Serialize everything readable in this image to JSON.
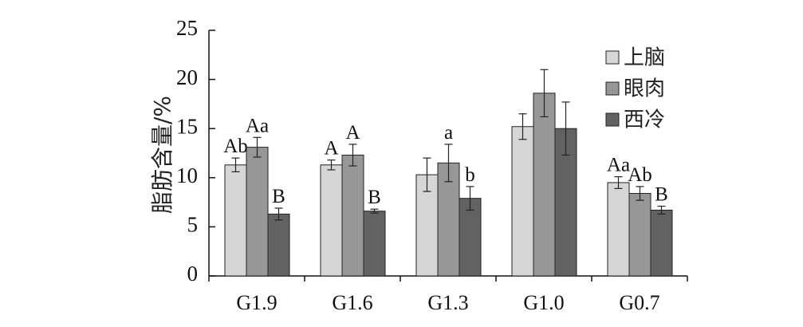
{
  "chart_data": {
    "type": "bar",
    "ylabel": "脂肪含量/%",
    "xlabel": "",
    "ylim": [
      0,
      25
    ],
    "yticks": [
      0,
      5,
      10,
      15,
      20,
      25
    ],
    "grid": false,
    "legend_position": "top-right",
    "categories": [
      "G1.9",
      "G1.6",
      "G1.3",
      "G1.0",
      "G0.7"
    ],
    "series": [
      {
        "name": "上脑",
        "color": "#d6d6d6",
        "values": [
          11.3,
          11.3,
          10.3,
          15.2,
          9.5
        ],
        "errors": [
          0.7,
          0.5,
          1.7,
          1.3,
          0.6
        ],
        "labels": [
          "Ab",
          "A",
          "",
          "",
          "Aa"
        ]
      },
      {
        "name": "眼肉",
        "color": "#979797",
        "values": [
          13.1,
          12.3,
          11.5,
          18.6,
          8.4
        ],
        "errors": [
          1.0,
          1.1,
          1.9,
          2.4,
          0.7
        ],
        "labels": [
          "Aa",
          "A",
          "a",
          "",
          "Ab"
        ]
      },
      {
        "name": "西冷",
        "color": "#626262",
        "values": [
          6.3,
          6.6,
          7.9,
          15.0,
          6.7
        ],
        "errors": [
          0.6,
          0.2,
          1.2,
          2.7,
          0.4
        ],
        "labels": [
          "B",
          "B",
          "b",
          "",
          "B"
        ]
      }
    ]
  }
}
